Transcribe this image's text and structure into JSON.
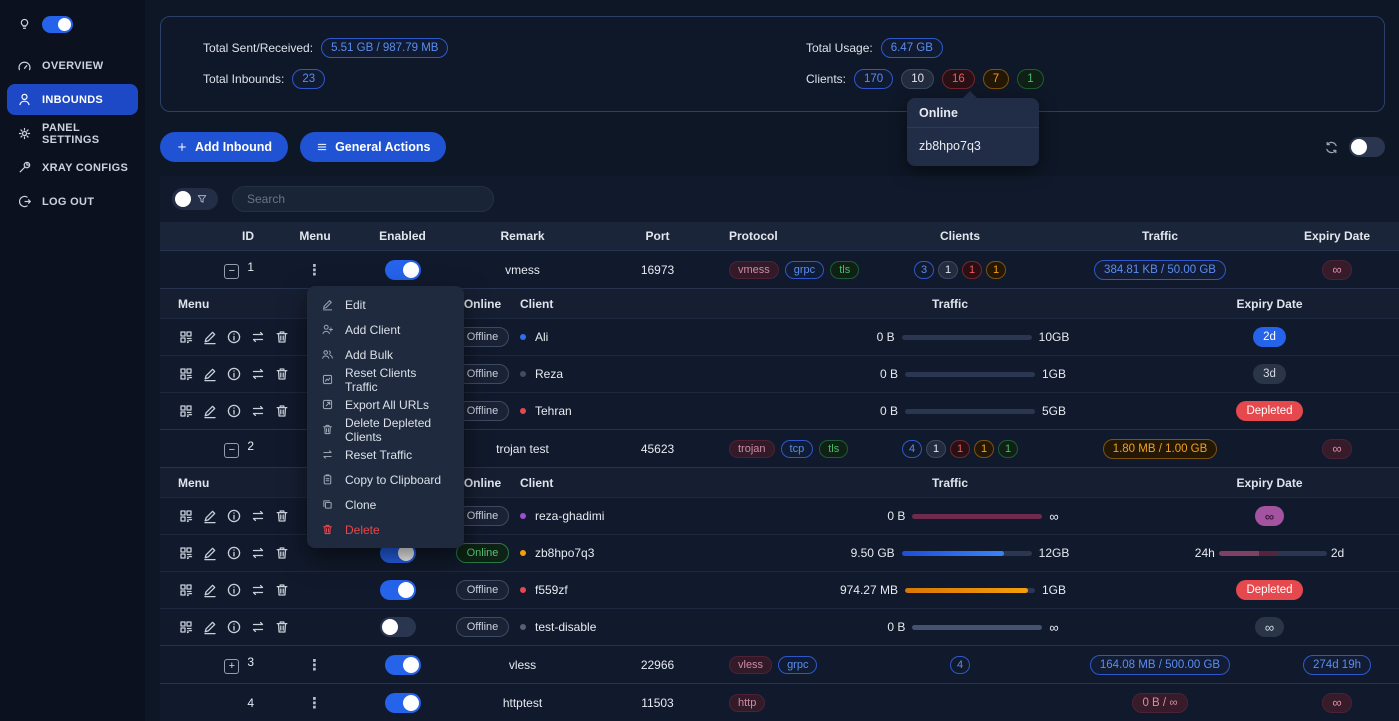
{
  "colors": {
    "accent": "#2563eb",
    "danger": "#e5484d",
    "success": "#46a758",
    "warning": "#f5a524",
    "sidebar_bg": "#0c1120",
    "page_bg": "#0e1726"
  },
  "sidebar": {
    "theme_toggle_on": true,
    "items": [
      {
        "label": "OVERVIEW",
        "icon": "gauge-icon",
        "active": false
      },
      {
        "label": "INBOUNDS",
        "icon": "user-icon",
        "active": true
      },
      {
        "label": "PANEL SETTINGS",
        "icon": "gear-icon",
        "active": false
      },
      {
        "label": "XRAY CONFIGS",
        "icon": "wrench-icon",
        "active": false
      },
      {
        "label": "LOG OUT",
        "icon": "logout-icon",
        "active": false
      }
    ]
  },
  "stats": {
    "total_sent_received_label": "Total Sent/Received:",
    "total_sent_received": "5.51 GB / 987.79 MB",
    "total_inbounds_label": "Total Inbounds:",
    "total_inbounds": "23",
    "total_usage_label": "Total Usage:",
    "total_usage": "6.47 GB",
    "clients_label": "Clients:",
    "clients_counts": [
      {
        "value": "170",
        "color": "blue"
      },
      {
        "value": "10",
        "color": "gray"
      },
      {
        "value": "16",
        "color": "red"
      },
      {
        "value": "7",
        "color": "orange"
      },
      {
        "value": "1",
        "color": "green"
      }
    ]
  },
  "tooltip": {
    "title": "Online",
    "client": "zb8hpo7q3"
  },
  "toolbar": {
    "add_inbound_label": "Add Inbound",
    "general_actions_label": "General Actions",
    "auto_refresh_on": false
  },
  "search": {
    "placeholder": "Search"
  },
  "context_menu": {
    "items": [
      {
        "label": "Edit",
        "icon": "pencil-icon"
      },
      {
        "label": "Add Client",
        "icon": "user-plus-icon"
      },
      {
        "label": "Add Bulk",
        "icon": "users-icon"
      },
      {
        "label": "Reset Clients Traffic",
        "icon": "chart-box-icon"
      },
      {
        "label": "Export All URLs",
        "icon": "export-icon"
      },
      {
        "label": "Delete Depleted Clients",
        "icon": "trash-icon"
      },
      {
        "label": "Reset Traffic",
        "icon": "swap-icon"
      },
      {
        "label": "Copy to Clipboard",
        "icon": "clipboard-icon"
      },
      {
        "label": "Clone",
        "icon": "copy-icon"
      },
      {
        "label": "Delete",
        "icon": "trash-icon",
        "danger": true
      }
    ]
  },
  "table": {
    "headers": [
      "ID",
      "Menu",
      "Enabled",
      "Remark",
      "Port",
      "Protocol",
      "Clients",
      "Traffic",
      "Expiry Date"
    ],
    "sub_headers": {
      "menu": "Menu",
      "online": "Online",
      "client": "Client",
      "traffic": "Traffic",
      "expiry": "Expiry Date"
    },
    "client_actions": [
      "qr-icon",
      "pencil-icon",
      "info-icon",
      "swap-icon",
      "trash-icon"
    ],
    "inbounds": [
      {
        "id": "1",
        "expand": "minus",
        "enabled": true,
        "remark": "vmess",
        "port": "16973",
        "protocols": [
          {
            "label": "vmess",
            "color": "maroon"
          },
          {
            "label": "grpc",
            "color": "blue"
          },
          {
            "label": "tls",
            "color": "green"
          }
        ],
        "clients_badges": [
          {
            "value": "3",
            "color": "blue"
          },
          {
            "value": "1",
            "color": "gray"
          },
          {
            "value": "1",
            "color": "red"
          },
          {
            "value": "1",
            "color": "orange"
          }
        ],
        "traffic": {
          "text": "384.81 KB / 50.00 GB",
          "style": "o-blue"
        },
        "expiry": {
          "type": "pill",
          "text": "∞",
          "style": "o-maroon"
        },
        "clients": [
          {
            "name": "Ali",
            "dot": "#2f6fed",
            "online": "Offline",
            "traffic": {
              "used": "0 B",
              "limit": "10GB",
              "pct": 0,
              "color": "blue"
            },
            "expiry": {
              "type": "pill",
              "text": "2d",
              "style": "s-blue"
            }
          },
          {
            "name": "Reza",
            "dot": "#3f4c63",
            "online": "Offline",
            "traffic": {
              "used": "0 B",
              "limit": "1GB",
              "pct": 0,
              "color": "blue"
            },
            "expiry": {
              "type": "pill",
              "text": "3d",
              "style": "s-slate"
            }
          },
          {
            "name": "Tehran",
            "dot": "#e5484d",
            "online": "Offline",
            "traffic": {
              "used": "0 B",
              "limit": "5GB",
              "pct": 0,
              "color": "blue"
            },
            "expiry": {
              "type": "pill",
              "text": "Depleted",
              "style": "s-red"
            }
          }
        ]
      },
      {
        "id": "2",
        "expand": "minus",
        "enabled": true,
        "remark": "trojan test",
        "port": "45623",
        "protocols": [
          {
            "label": "trojan",
            "color": "maroon"
          },
          {
            "label": "tcp",
            "color": "blue"
          },
          {
            "label": "tls",
            "color": "green"
          }
        ],
        "clients_badges": [
          {
            "value": "4",
            "color": "blue"
          },
          {
            "value": "1",
            "color": "gray"
          },
          {
            "value": "1",
            "color": "red"
          },
          {
            "value": "1",
            "color": "orange"
          },
          {
            "value": "1",
            "color": "green"
          }
        ],
        "traffic": {
          "text": "1.80 MB / 1.00 GB",
          "style": "o-orange"
        },
        "expiry": {
          "type": "pill",
          "text": "∞",
          "style": "o-maroon"
        },
        "clients": [
          {
            "name": "reza-ghadimi",
            "dot": "#9a4fd0",
            "online": "Offline",
            "traffic": {
              "used": "0 B",
              "limit": "∞",
              "pct": 100,
              "color": "maroon"
            },
            "expiry": {
              "type": "pill",
              "text": "∞",
              "style": "s-purple"
            }
          },
          {
            "name": "zb8hpo7q3",
            "dot": "#f59e0b",
            "online": "Online",
            "enabled": true,
            "traffic": {
              "used": "9.50 GB",
              "limit": "12GB",
              "pct": 79,
              "color": "blue"
            },
            "expiry": {
              "type": "progress",
              "from": "24h",
              "to": "2d",
              "pct": 55
            }
          },
          {
            "name": "f559zf",
            "dot": "#e5484d",
            "online": "Offline",
            "enabled": true,
            "traffic": {
              "used": "974.27 MB",
              "limit": "1GB",
              "pct": 95,
              "color": "orange"
            },
            "expiry": {
              "type": "pill",
              "text": "Depleted",
              "style": "s-red"
            }
          },
          {
            "name": "test-disable",
            "dot": "#566178",
            "online": "Offline",
            "enabled": false,
            "traffic": {
              "used": "0 B",
              "limit": "∞",
              "pct": 100,
              "color": "slate"
            },
            "expiry": {
              "type": "pill",
              "text": "∞",
              "style": "s-slate"
            }
          }
        ]
      },
      {
        "id": "3",
        "expand": "plus",
        "enabled": true,
        "remark": "vless",
        "port": "22966",
        "protocols": [
          {
            "label": "vless",
            "color": "maroon"
          },
          {
            "label": "grpc",
            "color": "blue"
          }
        ],
        "clients_badges": [
          {
            "value": "4",
            "color": "blue"
          }
        ],
        "traffic": {
          "text": "164.08 MB / 500.00 GB",
          "style": "o-blue"
        },
        "expiry": {
          "type": "pill",
          "text": "274d 19h",
          "style": "o-blue"
        },
        "clients": []
      },
      {
        "id": "4",
        "expand": "none",
        "enabled": true,
        "remark": "httptest",
        "port": "11503",
        "protocols": [
          {
            "label": "http",
            "color": "maroon"
          }
        ],
        "clients_badges": [],
        "traffic": {
          "text": "0 B / ∞",
          "style": "o-maroon"
        },
        "expiry": {
          "type": "pill",
          "text": "∞",
          "style": "o-maroon"
        },
        "clients": []
      }
    ]
  }
}
